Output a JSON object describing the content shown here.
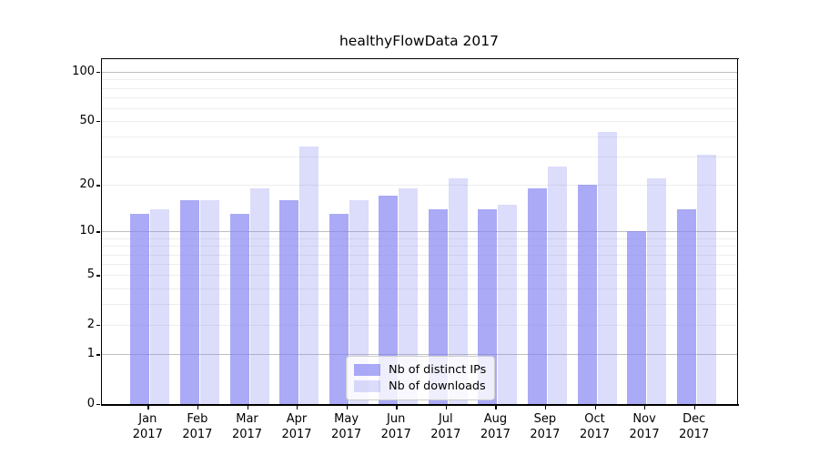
{
  "figure": {
    "background": "#ffffff"
  },
  "chart_data": {
    "type": "bar",
    "title": "healthyFlowData 2017",
    "categories": [
      "Jan 2017",
      "Feb 2017",
      "Mar 2017",
      "Apr 2017",
      "May 2017",
      "Jun 2017",
      "Jul 2017",
      "Aug 2017",
      "Sep 2017",
      "Oct 2017",
      "Nov 2017",
      "Dec 2017"
    ],
    "series": [
      {
        "name": "Nb of distinct IPs",
        "values": [
          13,
          16,
          13,
          16,
          13,
          17,
          14,
          14,
          19,
          20,
          10,
          14
        ],
        "color_hex": "#8282f2",
        "alpha": 0.68
      },
      {
        "name": "Nb of downloads",
        "values": [
          14,
          16,
          19,
          35,
          16,
          19,
          22,
          15,
          26,
          43,
          22,
          31
        ],
        "color_hex": "#8282f2",
        "alpha": 0.28
      }
    ],
    "xlabel": "",
    "ylabel": "",
    "y_scale": "log10(1+x)",
    "y_ticks": [
      0,
      1,
      2,
      5,
      10,
      20,
      50,
      100
    ],
    "y_minor_gridlines": [
      3,
      4,
      6,
      7,
      8,
      9,
      30,
      40,
      60,
      70,
      80,
      90
    ],
    "y_emphasized_gridlines": [
      1,
      10,
      100
    ],
    "ylim": [
      0,
      121
    ],
    "grid": true,
    "legend_position": "lower center",
    "axis_color": "#000000",
    "gridline_minor_color": "#ededed",
    "gridline_major_color": "#bfbfbf"
  }
}
